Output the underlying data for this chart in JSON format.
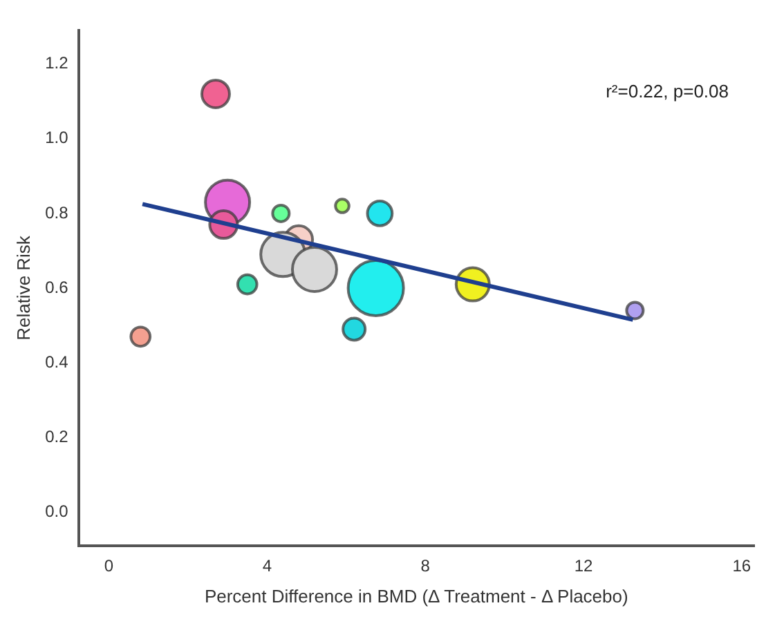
{
  "chart_data": {
    "type": "bubble",
    "xlabel": "Percent Difference in BMD (Δ Treatment - Δ Placebo)",
    "ylabel": "Relative Risk",
    "annotations": [
      "r²=0.22, p=0.08"
    ],
    "xlim": [
      -0.75,
      16.3
    ],
    "xticks": [
      0,
      4,
      8,
      12,
      16
    ],
    "ylim": [
      -0.09,
      1.29
    ],
    "yticks": [
      {
        "value": 0,
        "label": "0.0"
      },
      {
        "value": 0.2,
        "label": "0.2"
      },
      {
        "value": 0.4,
        "label": "0.4"
      },
      {
        "value": 0.6,
        "label": "0.6"
      },
      {
        "value": 0.8,
        "label": "0.8"
      },
      {
        "value": 1.0,
        "label": "1.0"
      },
      {
        "value": 1.2,
        "label": "1.2"
      }
    ],
    "grid": false,
    "legend": false,
    "series": [
      {
        "x": [
          2.7,
          3.0,
          2.9,
          4.35,
          5.9,
          6.85,
          4.8,
          4.4,
          5.2,
          6.75,
          3.5,
          9.2,
          13.3,
          6.2,
          0.8
        ],
        "values": [
          1.12,
          0.83,
          0.77,
          0.8,
          0.82,
          0.8,
          0.73,
          0.69,
          0.65,
          0.6,
          0.61,
          0.61,
          0.54,
          0.49,
          0.47
        ],
        "sizes": [
          0.25,
          0.64,
          0.25,
          0.09,
          0.06,
          0.2,
          0.25,
          0.64,
          0.64,
          1,
          0.12,
          0.36,
          0.09,
          0.16,
          0.12
        ],
        "colors": [
          "#f06292",
          "#e66ad8",
          "#e85a9a",
          "#66ff99",
          "#aaff66",
          "#22e5ee",
          "#f7d0c8",
          "#d9d9d9",
          "#d9d9d9",
          "#22eeee",
          "#33e0b0",
          "#f0f020",
          "#b0a0f0",
          "#22d8e0",
          "#f4a090"
        ]
      },
      {
        "type": "line",
        "x": [
          0.85,
          13.25
        ],
        "values": [
          0.825,
          0.515
        ],
        "color": "#1f3f8f",
        "marker": "none"
      }
    ]
  }
}
